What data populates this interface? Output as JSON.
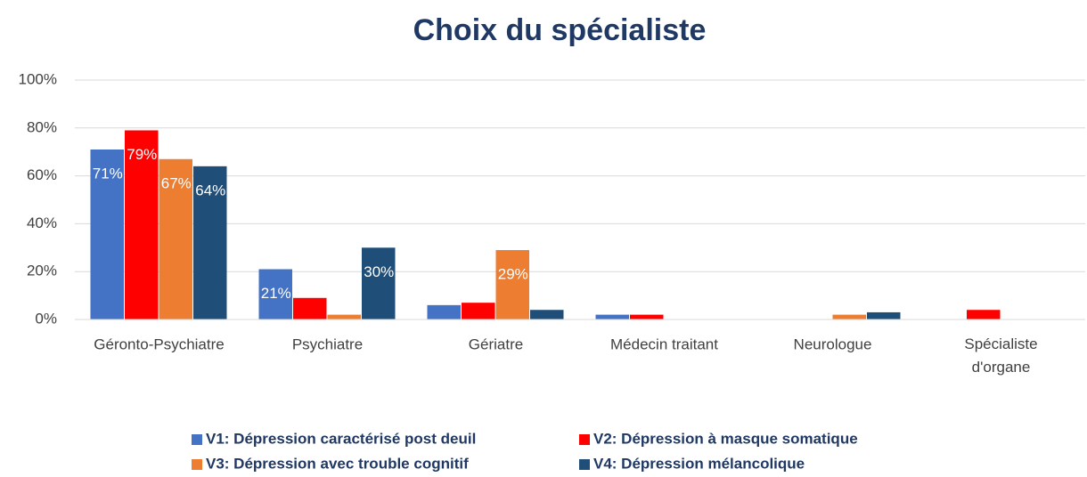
{
  "chart_data": {
    "type": "bar",
    "title": "Choix du spécialiste",
    "categories": [
      "Géronto-Psychiatre",
      "Psychiatre",
      "Gériatre",
      "Médecin traitant",
      "Neurologue",
      "Spécialiste d'organe"
    ],
    "series": [
      {
        "name": "V1: Dépression caractérisé post deuil",
        "color": "#4472c4",
        "values": [
          71,
          21,
          6,
          2,
          0,
          0
        ],
        "value_labels": [
          "71%",
          "21%",
          null,
          null,
          null,
          null
        ]
      },
      {
        "name": "V2: Dépression à masque somatique",
        "color": "#ff0000",
        "values": [
          79,
          9,
          7,
          2,
          0,
          4
        ],
        "value_labels": [
          "79%",
          null,
          null,
          null,
          null,
          null
        ]
      },
      {
        "name": "V3: Dépression avec trouble cognitif",
        "color": "#ed7d31",
        "values": [
          67,
          2,
          29,
          0,
          2,
          0
        ],
        "value_labels": [
          "67%",
          null,
          "29%",
          null,
          null,
          null
        ]
      },
      {
        "name": "V4: Dépression mélancolique",
        "color": "#1f4e79",
        "values": [
          64,
          30,
          4,
          0,
          3,
          0
        ],
        "value_labels": [
          "64%",
          "30%",
          null,
          null,
          null,
          null
        ]
      }
    ],
    "ylim": [
      0,
      100
    ],
    "yticks": [
      {
        "value": 0,
        "label": "0%"
      },
      {
        "value": 20,
        "label": "20%"
      },
      {
        "value": 40,
        "label": "40%"
      },
      {
        "value": 60,
        "label": "60%"
      },
      {
        "value": 80,
        "label": "80%"
      },
      {
        "value": 100,
        "label": "100%"
      }
    ],
    "grid": true
  }
}
